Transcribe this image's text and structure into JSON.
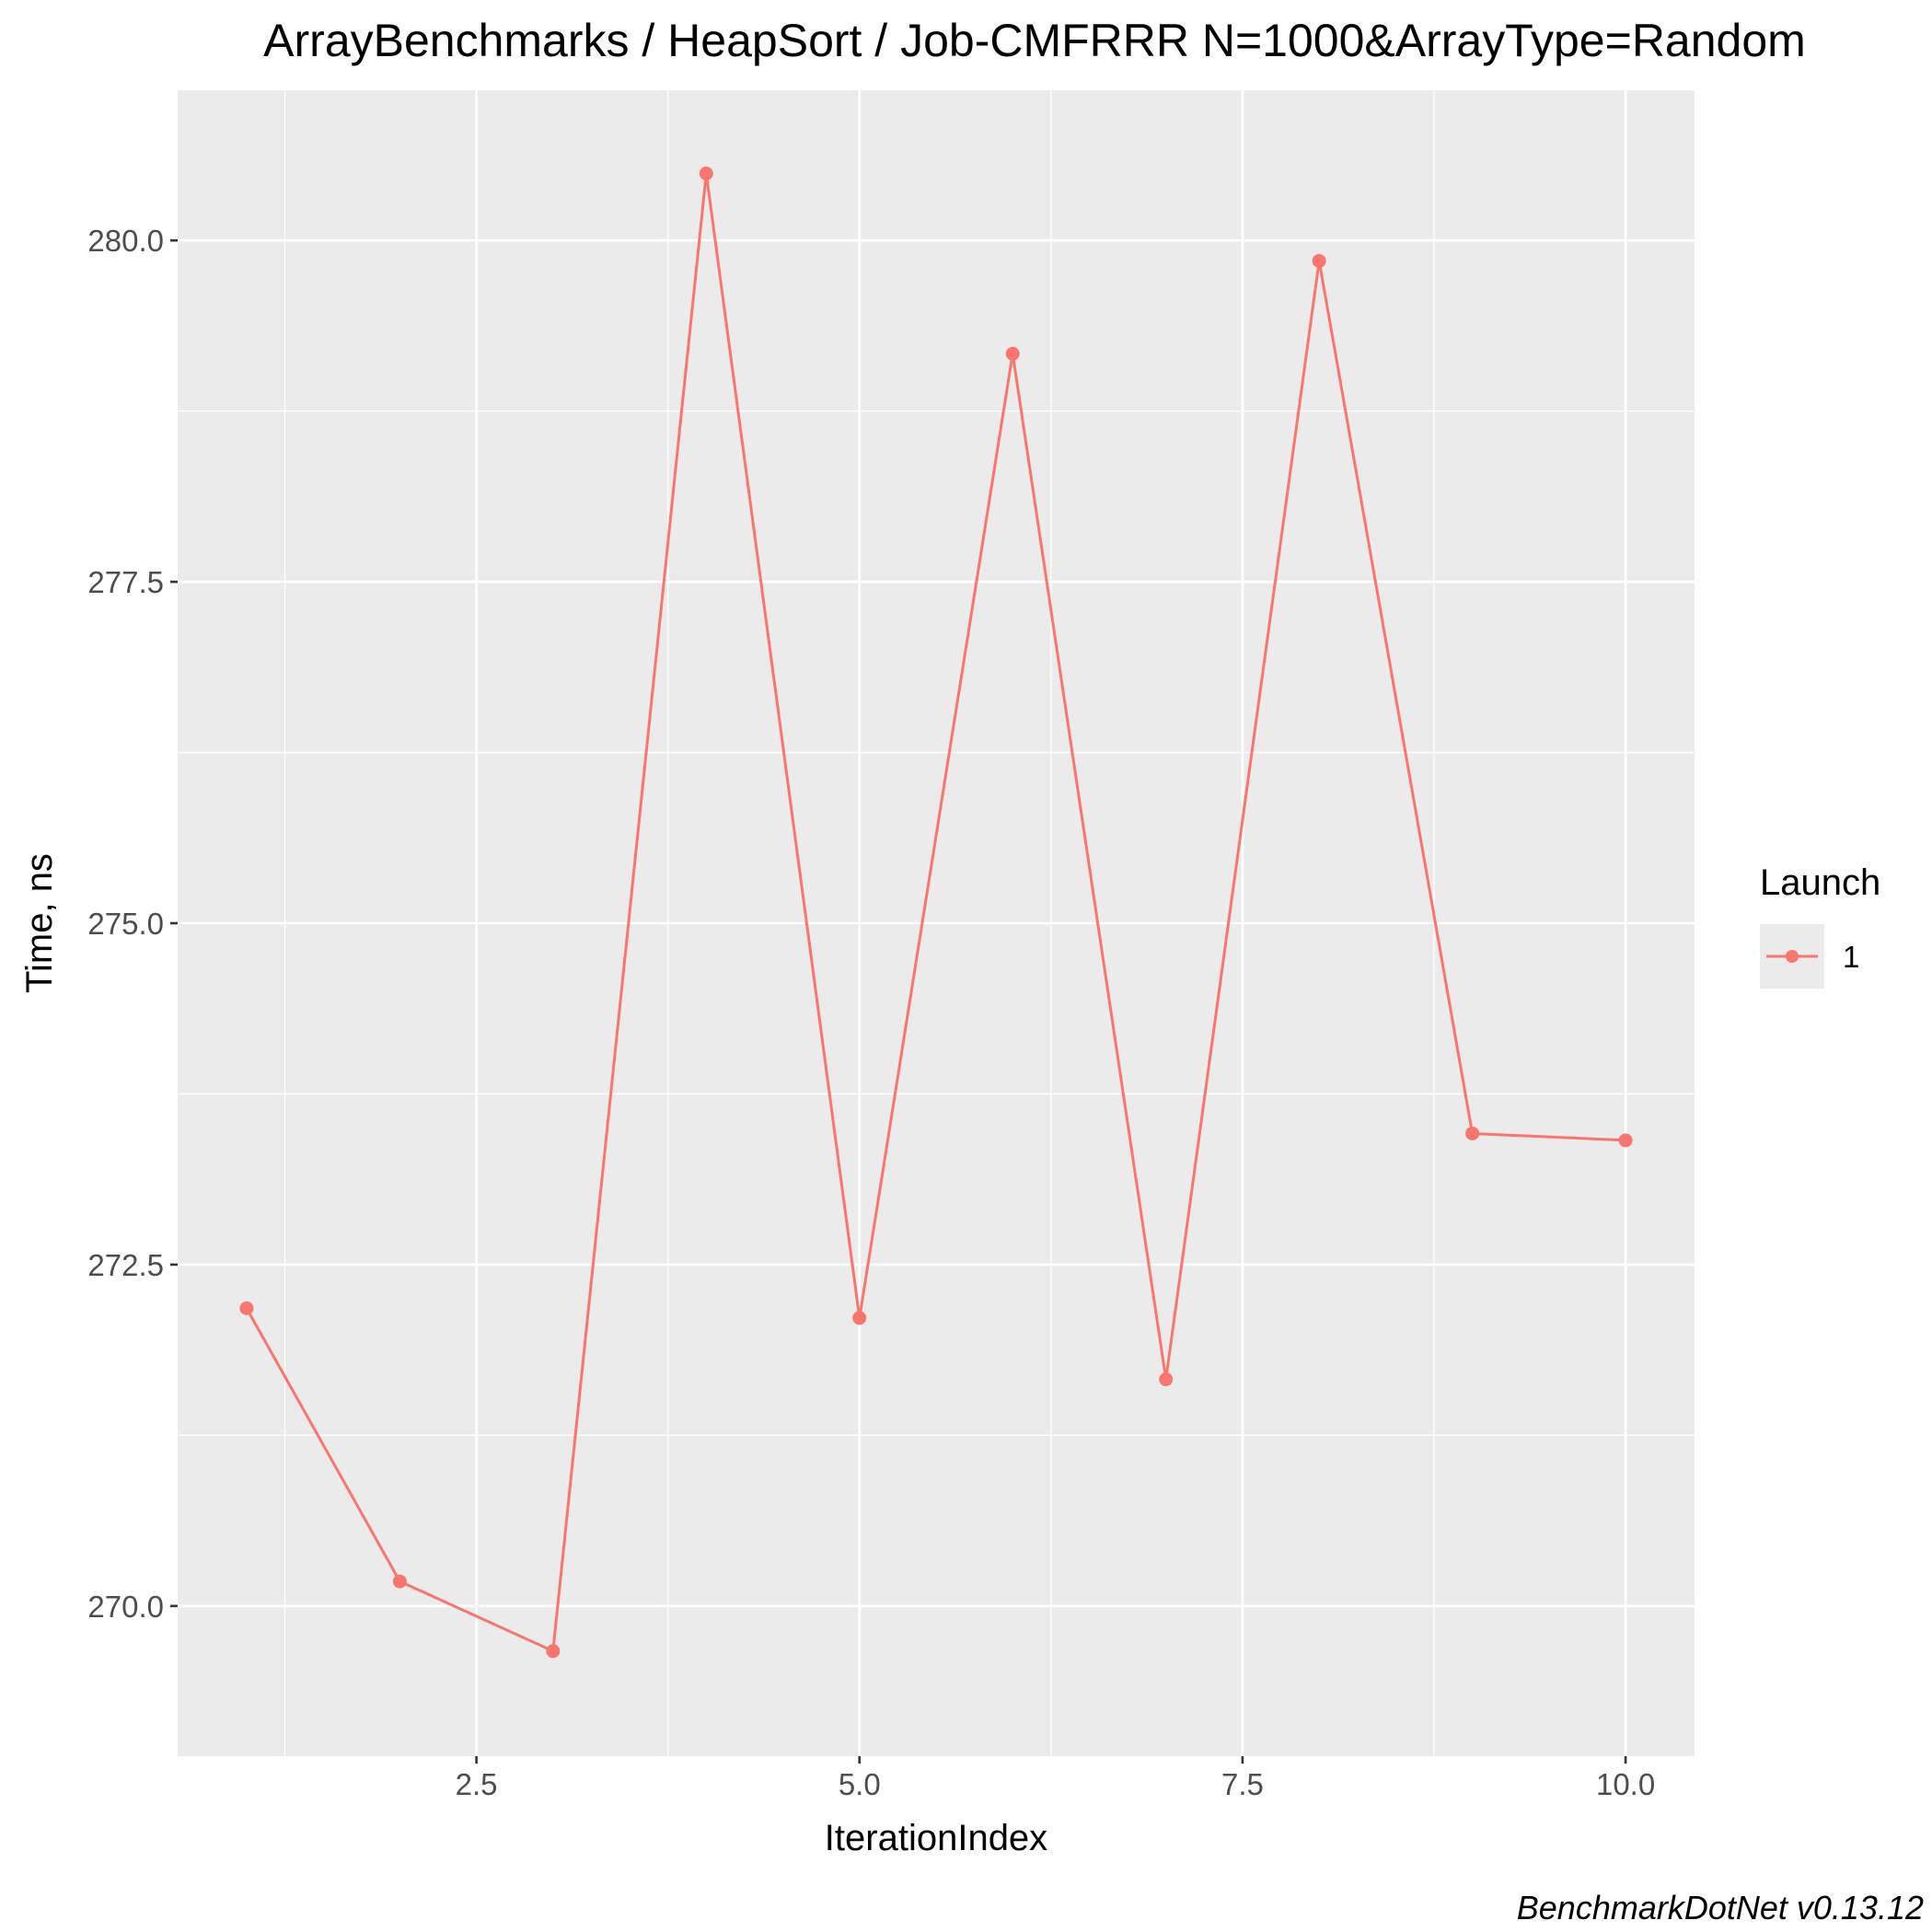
{
  "chart_data": {
    "type": "line",
    "title": "ArrayBenchmarks / HeapSort / Job-CMFRRR N=1000&ArrayType=Random",
    "xlabel": "IterationIndex",
    "ylabel": "Time, ns",
    "caption": "BenchmarkDotNet v0.13.12",
    "xlim": [
      0.55,
      10.45
    ],
    "ylim": [
      268.9,
      281.1
    ],
    "x_ticks": [
      2.5,
      5.0,
      7.5,
      10.0
    ],
    "x_tick_labels": [
      "2.5",
      "5.0",
      "7.5",
      "10.0"
    ],
    "x_minor_ticks": [
      1.25,
      3.75,
      6.25,
      8.75
    ],
    "y_ticks": [
      270.0,
      272.5,
      275.0,
      277.5,
      280.0
    ],
    "y_tick_labels": [
      "270.0",
      "272.5",
      "275.0",
      "277.5",
      "280.0"
    ],
    "y_minor_ticks": [
      271.25,
      273.75,
      276.25,
      278.75
    ],
    "grid": true,
    "legend": {
      "title": "Launch",
      "position": "right"
    },
    "series": [
      {
        "name": "1",
        "color": "#F8766D",
        "x": [
          1,
          2,
          3,
          4,
          5,
          6,
          7,
          8,
          9,
          10
        ],
        "values": [
          272.18,
          270.18,
          269.67,
          280.49,
          272.11,
          279.17,
          271.66,
          279.85,
          273.46,
          273.41
        ]
      }
    ]
  }
}
